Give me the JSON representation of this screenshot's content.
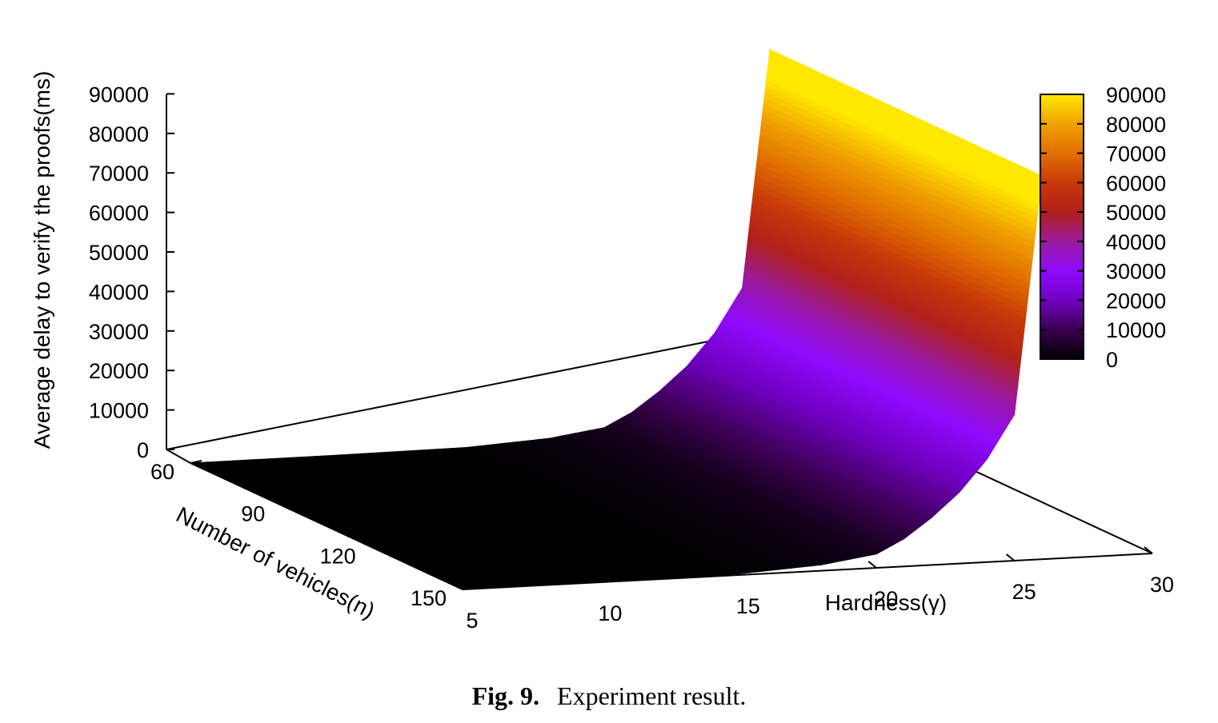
{
  "figure": {
    "caption_label": "Fig. 9.",
    "caption_text": "Experiment result."
  },
  "chart_data": {
    "type": "surface3d",
    "title": "",
    "xlabel": "Number of vehicles(n)",
    "ylabel": "Hardness(γ)",
    "zlabel": "Average delay to verify the proofs(ms)",
    "n_ticks": [
      "60",
      "90",
      "120",
      "150"
    ],
    "hardness_ticks": [
      "5",
      "10",
      "15",
      "20",
      "25",
      "30"
    ],
    "z_ticks": [
      "0",
      "10000",
      "20000",
      "30000",
      "40000",
      "50000",
      "60000",
      "70000",
      "80000",
      "90000"
    ],
    "colorbar_ticks": [
      "0",
      "10000",
      "20000",
      "30000",
      "40000",
      "50000",
      "60000",
      "70000",
      "80000",
      "90000"
    ],
    "nlim": [
      60,
      150
    ],
    "hardness_lim": [
      5,
      30
    ],
    "zlim": [
      0,
      90000
    ],
    "hardness": [
      5,
      10,
      15,
      18,
      20,
      21,
      22,
      23,
      24,
      25,
      26
    ],
    "delay": [
      0,
      50,
      300,
      1500,
      3500,
      7000,
      12000,
      18000,
      26000,
      37000,
      97000
    ],
    "note_surface": "delay roughly independent of n; grows exponentially with hardness",
    "colormap": [
      "#000000",
      "#3a0050",
      "#7000c0",
      "#8f0aff",
      "#9a1a9e",
      "#b0201c",
      "#c8380a",
      "#e06e00",
      "#f0a000",
      "#ffe800"
    ]
  }
}
